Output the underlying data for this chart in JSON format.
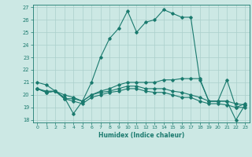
{
  "xlabel": "Humidex (Indice chaleur)",
  "bg_color": "#cce8e4",
  "grid_color": "#aacfcb",
  "line_color": "#1a7a6e",
  "xlim": [
    -0.5,
    23.5
  ],
  "ylim": [
    17.8,
    27.2
  ],
  "yticks": [
    18,
    19,
    20,
    21,
    22,
    23,
    24,
    25,
    26,
    27
  ],
  "xticks": [
    0,
    1,
    2,
    3,
    4,
    5,
    6,
    7,
    8,
    9,
    10,
    11,
    12,
    13,
    14,
    15,
    16,
    17,
    18,
    19,
    20,
    21,
    22,
    23
  ],
  "series": [
    [
      21.0,
      20.8,
      20.3,
      20.0,
      19.8,
      19.5,
      21.0,
      23.0,
      24.5,
      25.3,
      26.7,
      25.0,
      25.8,
      26.0,
      26.8,
      26.5,
      26.2,
      26.2,
      21.2,
      19.5,
      19.5,
      21.2,
      19.0,
      19.3
    ],
    [
      20.5,
      20.3,
      20.3,
      19.8,
      18.5,
      19.5,
      20.0,
      20.3,
      20.5,
      20.8,
      21.0,
      21.0,
      21.0,
      21.0,
      21.2,
      21.2,
      21.3,
      21.3,
      21.3,
      19.5,
      19.5,
      19.5,
      18.0,
      19.2
    ],
    [
      20.5,
      20.2,
      20.3,
      19.7,
      19.7,
      19.5,
      20.0,
      20.2,
      20.3,
      20.5,
      20.7,
      20.7,
      20.5,
      20.5,
      20.5,
      20.3,
      20.2,
      20.0,
      19.8,
      19.5,
      19.5,
      19.5,
      19.3,
      19.2
    ],
    [
      20.5,
      20.2,
      20.3,
      19.7,
      19.5,
      19.3,
      19.8,
      20.0,
      20.2,
      20.3,
      20.5,
      20.5,
      20.3,
      20.2,
      20.2,
      20.0,
      19.8,
      19.8,
      19.5,
      19.3,
      19.3,
      19.2,
      19.0,
      19.0
    ]
  ]
}
